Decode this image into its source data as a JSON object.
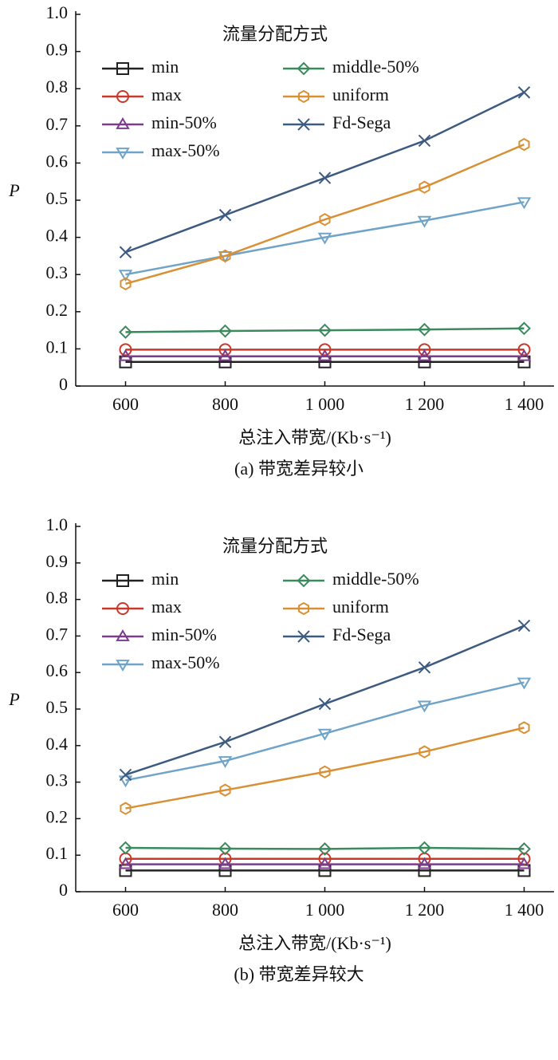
{
  "chart_data": [
    {
      "type": "line",
      "legend_title": "流量分配方式",
      "y_label": "P",
      "x_label": "总注入带宽/(Kb·s⁻¹)",
      "caption": "(a) 带宽差异较小",
      "x": [
        600,
        800,
        1000,
        1200,
        1400
      ],
      "xlim": [
        500,
        1460
      ],
      "xticks": [
        600,
        800,
        {
          "value": 1000,
          "label": "1 000"
        },
        {
          "value": 1200,
          "label": "1 200"
        },
        {
          "value": 1400,
          "label": "1 400"
        }
      ],
      "ylim": [
        0,
        1
      ],
      "yticks": [
        0,
        0.1,
        0.2,
        0.3,
        0.4,
        0.5,
        0.6,
        0.7,
        0.8,
        0.9,
        {
          "value": 1,
          "label": "1.0"
        }
      ],
      "series": [
        {
          "name": "min",
          "color": "#222222",
          "marker": "square",
          "values": [
            0.065,
            0.065,
            0.065,
            0.065,
            0.065
          ]
        },
        {
          "name": "max",
          "color": "#c8392b",
          "marker": "circle",
          "values": [
            0.098,
            0.098,
            0.098,
            0.098,
            0.098
          ]
        },
        {
          "name": "min-50%",
          "color": "#7b3c8c",
          "marker": "triangle-up",
          "values": [
            0.08,
            0.08,
            0.08,
            0.08,
            0.08
          ]
        },
        {
          "name": "max-50%",
          "color": "#6fa3c8",
          "marker": "triangle-down",
          "values": [
            0.3,
            0.35,
            0.4,
            0.445,
            0.495
          ]
        },
        {
          "name": "middle-50%",
          "color": "#3a8a5e",
          "marker": "diamond",
          "values": [
            0.145,
            0.148,
            0.15,
            0.152,
            0.155
          ]
        },
        {
          "name": "uniform",
          "color": "#d99035",
          "marker": "hexagon",
          "values": [
            0.275,
            0.35,
            0.448,
            0.535,
            0.65
          ]
        },
        {
          "name": "Fd-Sega",
          "color": "#3d5a80",
          "marker": "x",
          "values": [
            0.36,
            0.46,
            0.56,
            0.66,
            0.79
          ]
        }
      ]
    },
    {
      "type": "line",
      "legend_title": "流量分配方式",
      "y_label": "P",
      "x_label": "总注入带宽/(Kb·s⁻¹)",
      "caption": "(b) 带宽差异较大",
      "x": [
        600,
        800,
        1000,
        1200,
        1400
      ],
      "xlim": [
        500,
        1460
      ],
      "xticks": [
        600,
        800,
        {
          "value": 1000,
          "label": "1 000"
        },
        {
          "value": 1200,
          "label": "1 200"
        },
        {
          "value": 1400,
          "label": "1 400"
        }
      ],
      "ylim": [
        0,
        1
      ],
      "yticks": [
        0,
        0.1,
        0.2,
        0.3,
        0.4,
        0.5,
        0.6,
        0.7,
        0.8,
        0.9,
        {
          "value": 1,
          "label": "1.0"
        }
      ],
      "series": [
        {
          "name": "min",
          "color": "#222222",
          "marker": "square",
          "values": [
            0.058,
            0.058,
            0.058,
            0.058,
            0.058
          ]
        },
        {
          "name": "max",
          "color": "#c8392b",
          "marker": "circle",
          "values": [
            0.09,
            0.09,
            0.09,
            0.09,
            0.09
          ]
        },
        {
          "name": "min-50%",
          "color": "#7b3c8c",
          "marker": "triangle-up",
          "values": [
            0.075,
            0.075,
            0.075,
            0.075,
            0.075
          ]
        },
        {
          "name": "max-50%",
          "color": "#6fa3c8",
          "marker": "triangle-down",
          "values": [
            0.305,
            0.358,
            0.433,
            0.51,
            0.573
          ]
        },
        {
          "name": "middle-50%",
          "color": "#3a8a5e",
          "marker": "diamond",
          "values": [
            0.12,
            0.118,
            0.117,
            0.12,
            0.117
          ]
        },
        {
          "name": "uniform",
          "color": "#d99035",
          "marker": "hexagon",
          "values": [
            0.228,
            0.278,
            0.328,
            0.383,
            0.449
          ]
        },
        {
          "name": "Fd-Sega",
          "color": "#3d5a80",
          "marker": "x",
          "values": [
            0.32,
            0.41,
            0.514,
            0.614,
            0.728
          ]
        }
      ]
    }
  ]
}
